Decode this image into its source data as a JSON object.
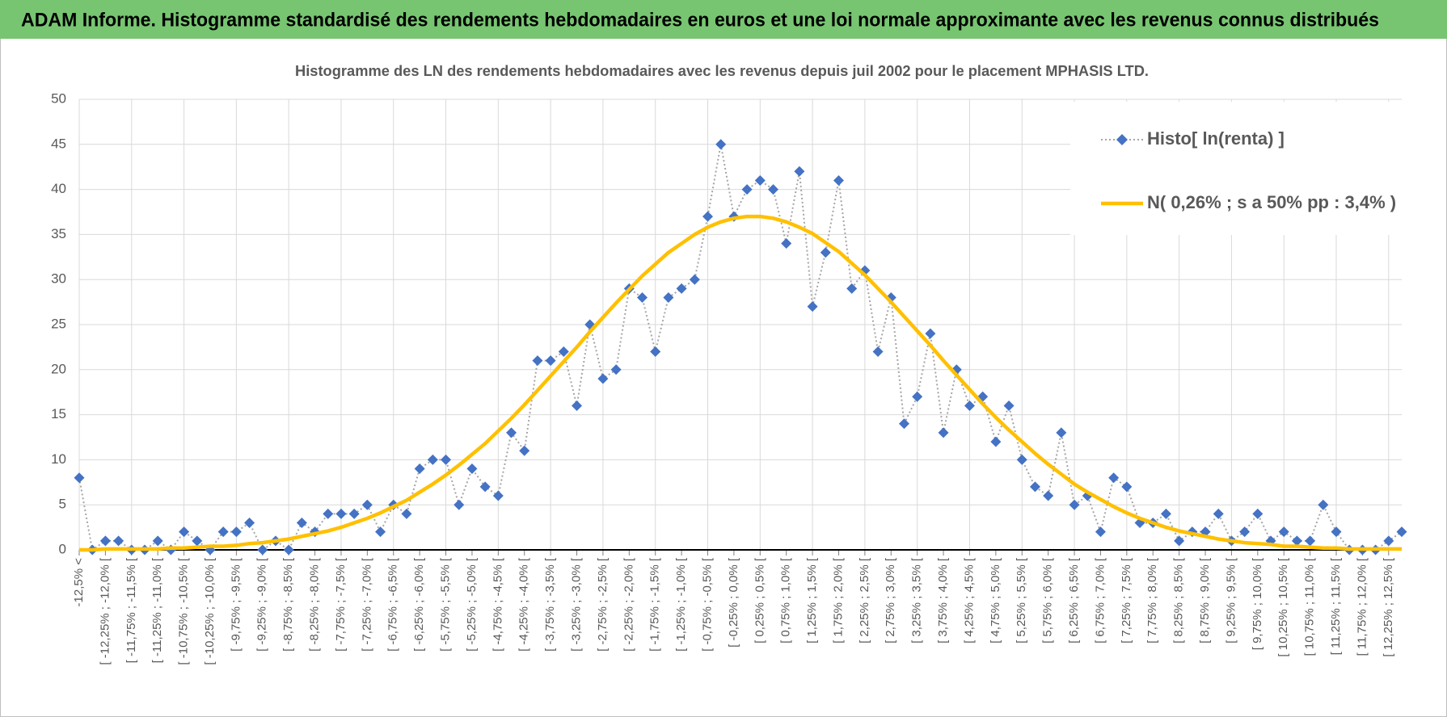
{
  "chart_data": {
    "type": "line",
    "title": "ADAM Informe. Histogramme standardisé des rendements hebdomadaires en euros et une loi normale approximante avec les revenus connus distribués",
    "subtitle": "Histogramme des LN des rendements hebdomadaires avec les revenus depuis juil 2002 pour le placement MPHASIS LTD.",
    "categories": [
      "-12,5% <",
      null,
      "[ -12,25% ; -12,0% [",
      null,
      "[ -11,75% ; -11,5% [",
      null,
      "[ -11,25% ; -11,0% [",
      null,
      "[ -10,75% ; -10,5% [",
      null,
      "[ -10,25% ; -10,0% [",
      null,
      "[ -9,75% ; -9,5% [",
      null,
      "[ -9,25% ; -9,0% [",
      null,
      "[ -8,75% ; -8,5% [",
      null,
      "[ -8,25% ; -8,0% [",
      null,
      "[ -7,75% ; -7,5% [",
      null,
      "[ -7,25% ; -7,0% [",
      null,
      "[ -6,75% ; -6,5% [",
      null,
      "[ -6,25% ; -6,0% [",
      null,
      "[ -5,75% ; -5,5% [",
      null,
      "[ -5,25% ; -5,0% [",
      null,
      "[ -4,75% ; -4,5% [",
      null,
      "[ -4,25% ; -4,0% [",
      null,
      "[ -3,75% ; -3,5% [",
      null,
      "[ -3,25% ; -3,0% [",
      null,
      "[ -2,75% ; -2,5% [",
      null,
      "[ -2,25% ; -2,0% [",
      null,
      "[ -1,75% ; -1,5% [",
      null,
      "[ -1,25% ; -1,0% [",
      null,
      "[ -0,75% ; -0,5% [",
      null,
      "[ -0,25% ; 0,0% [",
      null,
      "[ 0,25% ; 0,5% [",
      null,
      "[ 0,75% ; 1,0% [",
      null,
      "[ 1,25% ; 1,5% [",
      null,
      "[ 1,75% ; 2,0% [",
      null,
      "[ 2,25% ; 2,5% [",
      null,
      "[ 2,75% ; 3,0% [",
      null,
      "[ 3,25% ; 3,5% [",
      null,
      "[ 3,75% ; 4,0% [",
      null,
      "[ 4,25% ; 4,5% [",
      null,
      "[ 4,75% ; 5,0% [",
      null,
      "[ 5,25% ; 5,5% [",
      null,
      "[ 5,75% ; 6,0% [",
      null,
      "[ 6,25% ; 6,5% [",
      null,
      "[ 6,75% ; 7,0% [",
      null,
      "[ 7,25% ; 7,5% [",
      null,
      "[ 7,75% ; 8,0% [",
      null,
      "[ 8,25% ; 8,5% [",
      null,
      "[ 8,75% ; 9,0% [",
      null,
      "[ 9,25% ; 9,5% [",
      null,
      "[ 9,75% ; 10,0% [",
      null,
      "[ 10,25% ; 10,5% [",
      null,
      "[ 10,75% ; 11,0% [",
      null,
      "[ 11,25% ; 11,5% [",
      null,
      "[ 11,75% ; 12,0% [",
      null,
      "[ 12,25% ; 12,5% [",
      null
    ],
    "series": [
      {
        "name": "Histo[ ln(renta) ]",
        "color": "#4472c4",
        "line_color": "#a5a5a5",
        "line_style": "dotted",
        "marker": "diamond",
        "values": [
          8,
          0,
          1,
          1,
          0,
          0,
          1,
          0,
          2,
          1,
          0,
          2,
          2,
          3,
          0,
          1,
          0,
          3,
          2,
          4,
          4,
          4,
          5,
          2,
          5,
          4,
          9,
          10,
          10,
          5,
          9,
          7,
          6,
          13,
          11,
          21,
          21,
          22,
          16,
          25,
          19,
          20,
          29,
          28,
          22,
          28,
          29,
          30,
          37,
          45,
          37,
          40,
          41,
          40,
          34,
          42,
          27,
          33,
          41,
          29,
          31,
          22,
          28,
          14,
          17,
          24,
          13,
          20,
          16,
          17,
          12,
          16,
          10,
          7,
          6,
          13,
          5,
          6,
          2,
          8,
          7,
          3,
          3,
          4,
          1,
          2,
          2,
          4,
          1,
          2,
          4,
          1,
          2,
          1,
          1,
          5,
          2,
          0,
          0,
          0,
          1,
          2
        ]
      },
      {
        "name": "N( 0,26% ; s a 50% pp : 3,4% )",
        "color": "#ffc000",
        "line_color": "#ffc000",
        "line_style": "solid",
        "marker": "none",
        "values": [
          0.0,
          0.0,
          0.1,
          0.1,
          0.1,
          0.1,
          0.1,
          0.2,
          0.2,
          0.3,
          0.4,
          0.4,
          0.5,
          0.7,
          0.8,
          1.0,
          1.2,
          1.5,
          1.8,
          2.1,
          2.5,
          3.0,
          3.5,
          4.1,
          4.8,
          5.5,
          6.4,
          7.3,
          8.3,
          9.4,
          10.6,
          11.8,
          13.2,
          14.6,
          16.1,
          17.7,
          19.3,
          20.9,
          22.5,
          24.2,
          25.8,
          27.4,
          28.9,
          30.4,
          31.7,
          33.0,
          34.0,
          35.0,
          35.8,
          36.4,
          36.8,
          37.0,
          37.0,
          36.8,
          36.4,
          35.8,
          35.1,
          34.1,
          33.1,
          31.8,
          30.5,
          29.0,
          27.5,
          25.9,
          24.3,
          22.7,
          21.0,
          19.4,
          17.8,
          16.2,
          14.7,
          13.3,
          12.0,
          10.7,
          9.5,
          8.4,
          7.3,
          6.4,
          5.6,
          4.8,
          4.1,
          3.5,
          3.0,
          2.5,
          2.1,
          1.8,
          1.5,
          1.2,
          1.0,
          0.8,
          0.7,
          0.6,
          0.4,
          0.4,
          0.3,
          0.2,
          0.2,
          0.1,
          0.1,
          0.1,
          0.1,
          0.1
        ]
      }
    ],
    "ylim": [
      0,
      50
    ],
    "yticks": [
      0,
      5,
      10,
      15,
      20,
      25,
      30,
      35,
      40,
      45,
      50
    ],
    "grid": true,
    "legend": "upper right"
  }
}
